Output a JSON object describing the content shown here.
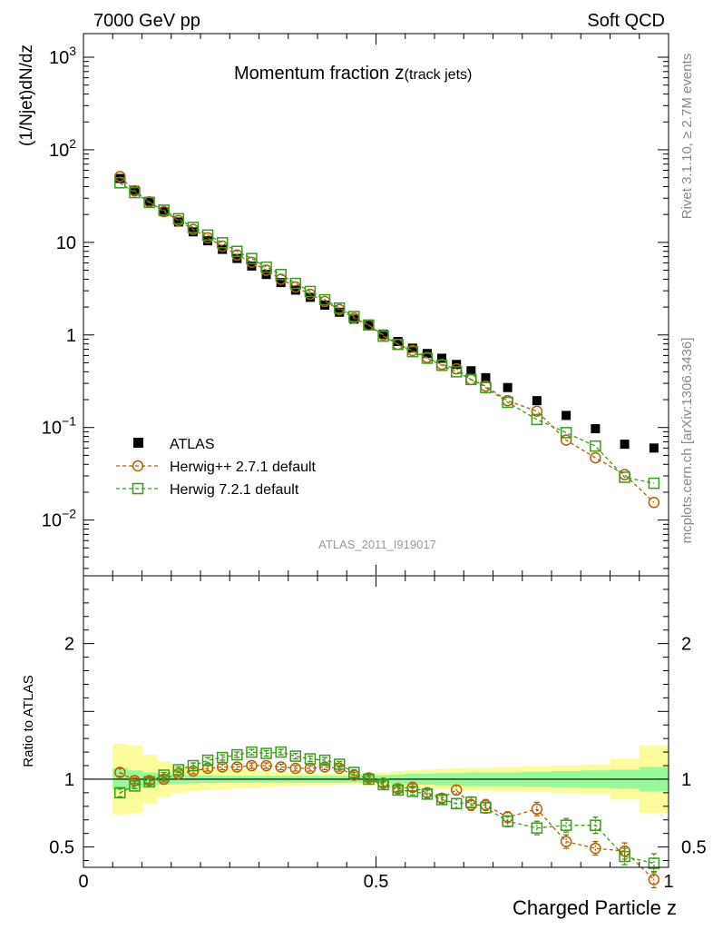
{
  "header": {
    "left": "7000 GeV pp",
    "right": "Soft QCD"
  },
  "side_labels": {
    "rivet": "Rivet 3.1.10, ≥ 2.7M events",
    "mcplots": "mcplots.cern.ch [arXiv:1306.3436]"
  },
  "watermark": "ATLAS_2011_I919017",
  "colors": {
    "atlas": "#000000",
    "herwigpp": "#b35f00",
    "herwig7": "#3a9a1c",
    "band_inner": "#99f899",
    "band_outer": "#fbfb9b"
  },
  "chart_data": [
    {
      "type": "scatter",
      "panel": "main",
      "title": "Momentum fraction",
      "title_symbol": "z",
      "title_subscript": "(track jets)",
      "xlabel": "Charged Particle z",
      "ylabel": "(1/Njet)dN/dz",
      "xlim": [
        0,
        1
      ],
      "ylim": [
        0.0025,
        1800
      ],
      "yscale": "log",
      "x_ticks": [
        {
          "value": 0,
          "label": "0"
        },
        {
          "value": 0.5,
          "label": "0.5"
        },
        {
          "value": 1,
          "label": "1"
        }
      ],
      "y_ticks": [
        {
          "value": 0.01,
          "label": "10",
          "exp": "−2"
        },
        {
          "value": 0.1,
          "label": "10",
          "exp": "−1"
        },
        {
          "value": 1,
          "label": "1",
          "exp": ""
        },
        {
          "value": 10,
          "label": "10",
          "exp": ""
        },
        {
          "value": 100,
          "label": "10",
          "exp": "2"
        },
        {
          "value": 1000,
          "label": "10",
          "exp": "3"
        }
      ],
      "legend_position": "lower-left",
      "legend": [
        {
          "label": "ATLAS",
          "style": "square-filled",
          "series": "atlas"
        },
        {
          "label": "Herwig++ 2.7.1 default",
          "style": "circle-dashed",
          "series": "herwigpp"
        },
        {
          "label": "Herwig 7.2.1 default",
          "style": "square-dashed",
          "series": "herwig7"
        }
      ],
      "x": [
        0.0625,
        0.0875,
        0.1125,
        0.1375,
        0.1625,
        0.1875,
        0.2125,
        0.2375,
        0.2625,
        0.2875,
        0.3125,
        0.3375,
        0.3625,
        0.3875,
        0.4125,
        0.4375,
        0.4625,
        0.4875,
        0.5125,
        0.5375,
        0.5625,
        0.5875,
        0.6125,
        0.6375,
        0.6625,
        0.6875,
        0.725,
        0.775,
        0.825,
        0.875,
        0.925,
        0.975
      ],
      "series": [
        {
          "name": "ATLAS",
          "key": "atlas",
          "values": [
            49.0,
            36.5,
            27.8,
            21.4,
            16.6,
            13.0,
            10.4,
            8.4,
            6.7,
            5.55,
            4.5,
            3.68,
            3.05,
            2.55,
            2.1,
            1.76,
            1.48,
            1.27,
            1.02,
            0.85,
            0.72,
            0.63,
            0.56,
            0.48,
            0.41,
            0.345,
            0.27,
            0.195,
            0.135,
            0.097,
            0.066,
            0.06
          ]
        },
        {
          "name": "Herwig++ 2.7.1 default",
          "key": "herwigpp",
          "values": [
            51.5,
            36.0,
            27.4,
            21.5,
            17.2,
            13.8,
            11.2,
            9.1,
            7.3,
            6.1,
            5.0,
            4.0,
            3.3,
            2.75,
            2.3,
            1.88,
            1.52,
            1.28,
            1.0,
            0.79,
            0.68,
            0.57,
            0.48,
            0.43,
            0.33,
            0.28,
            0.195,
            0.15,
            0.073,
            0.047,
            0.031,
            0.0155
          ]
        },
        {
          "name": "Herwig 7.2.1 default",
          "key": "herwig7",
          "values": [
            44.0,
            34.5,
            27.0,
            22.3,
            18.0,
            14.5,
            12.0,
            9.9,
            8.0,
            6.7,
            5.4,
            4.5,
            3.6,
            2.95,
            2.4,
            1.95,
            1.58,
            1.28,
            0.97,
            0.79,
            0.66,
            0.56,
            0.47,
            0.4,
            0.33,
            0.27,
            0.187,
            0.122,
            0.088,
            0.063,
            0.029,
            0.025
          ]
        }
      ]
    },
    {
      "type": "scatter",
      "panel": "ratio",
      "ylabel": "Ratio to ATLAS",
      "xlim": [
        0,
        1
      ],
      "ylim": [
        0.35,
        2.5
      ],
      "y_ticks": [
        {
          "value": 0.5,
          "label": "0.5"
        },
        {
          "value": 1,
          "label": "1"
        },
        {
          "value": 2,
          "label": "2"
        }
      ],
      "x": [
        0.0625,
        0.0875,
        0.1125,
        0.1375,
        0.1625,
        0.1875,
        0.2125,
        0.2375,
        0.2625,
        0.2875,
        0.3125,
        0.3375,
        0.3625,
        0.3875,
        0.4125,
        0.4375,
        0.4625,
        0.4875,
        0.5125,
        0.5375,
        0.5625,
        0.5875,
        0.6125,
        0.6375,
        0.6625,
        0.6875,
        0.725,
        0.775,
        0.825,
        0.875,
        0.925,
        0.975
      ],
      "band_edges": [
        0.05,
        0.075,
        0.1,
        0.125,
        0.15,
        0.175,
        0.2,
        0.225,
        0.25,
        0.275,
        0.3,
        0.325,
        0.35,
        0.375,
        0.4,
        0.425,
        0.45,
        0.475,
        0.5,
        0.525,
        0.55,
        0.575,
        0.6,
        0.625,
        0.65,
        0.675,
        0.7,
        0.75,
        0.8,
        0.85,
        0.9,
        0.95,
        1.0
      ],
      "band_inner": [
        0.08,
        0.065,
        0.05,
        0.04,
        0.035,
        0.03,
        0.028,
        0.026,
        0.025,
        0.025,
        0.025,
        0.025,
        0.025,
        0.025,
        0.025,
        0.025,
        0.025,
        0.025,
        0.03,
        0.035,
        0.04,
        0.04,
        0.045,
        0.045,
        0.05,
        0.05,
        0.05,
        0.055,
        0.06,
        0.065,
        0.07,
        0.09
      ],
      "band_outer": [
        0.26,
        0.25,
        0.18,
        0.13,
        0.1,
        0.09,
        0.08,
        0.075,
        0.07,
        0.065,
        0.06,
        0.055,
        0.05,
        0.045,
        0.045,
        0.04,
        0.04,
        0.045,
        0.05,
        0.06,
        0.065,
        0.07,
        0.075,
        0.08,
        0.085,
        0.085,
        0.09,
        0.095,
        0.1,
        0.11,
        0.15,
        0.25
      ],
      "series": [
        {
          "name": "Herwig++ 2.7.1 default",
          "key": "herwigpp",
          "values": [
            1.05,
            0.99,
            0.99,
            1.0,
            1.04,
            1.06,
            1.08,
            1.09,
            1.09,
            1.1,
            1.1,
            1.09,
            1.08,
            1.08,
            1.09,
            1.08,
            1.03,
            1.01,
            0.97,
            0.93,
            0.94,
            0.9,
            0.86,
            0.92,
            0.81,
            0.81,
            0.72,
            0.78,
            0.54,
            0.49,
            0.47,
            0.26
          ],
          "errors": [
            0.03,
            0.02,
            0.02,
            0.02,
            0.02,
            0.02,
            0.02,
            0.02,
            0.02,
            0.02,
            0.02,
            0.02,
            0.02,
            0.02,
            0.02,
            0.02,
            0.02,
            0.02,
            0.02,
            0.02,
            0.025,
            0.03,
            0.03,
            0.035,
            0.04,
            0.04,
            0.04,
            0.05,
            0.05,
            0.05,
            0.06,
            0.06
          ]
        },
        {
          "name": "Herwig 7.2.1 default",
          "key": "herwig7",
          "values": [
            0.9,
            0.95,
            0.98,
            1.03,
            1.07,
            1.1,
            1.14,
            1.16,
            1.18,
            1.2,
            1.19,
            1.2,
            1.17,
            1.15,
            1.14,
            1.11,
            1.05,
            1.0,
            0.96,
            0.92,
            0.91,
            0.89,
            0.85,
            0.82,
            0.83,
            0.79,
            0.69,
            0.64,
            0.66,
            0.66,
            0.43,
            0.38
          ],
          "errors": [
            0.03,
            0.02,
            0.02,
            0.02,
            0.02,
            0.02,
            0.02,
            0.02,
            0.02,
            0.02,
            0.02,
            0.02,
            0.02,
            0.02,
            0.02,
            0.02,
            0.02,
            0.02,
            0.02,
            0.02,
            0.025,
            0.03,
            0.03,
            0.035,
            0.04,
            0.04,
            0.04,
            0.05,
            0.05,
            0.06,
            0.06,
            0.07
          ]
        }
      ]
    }
  ]
}
